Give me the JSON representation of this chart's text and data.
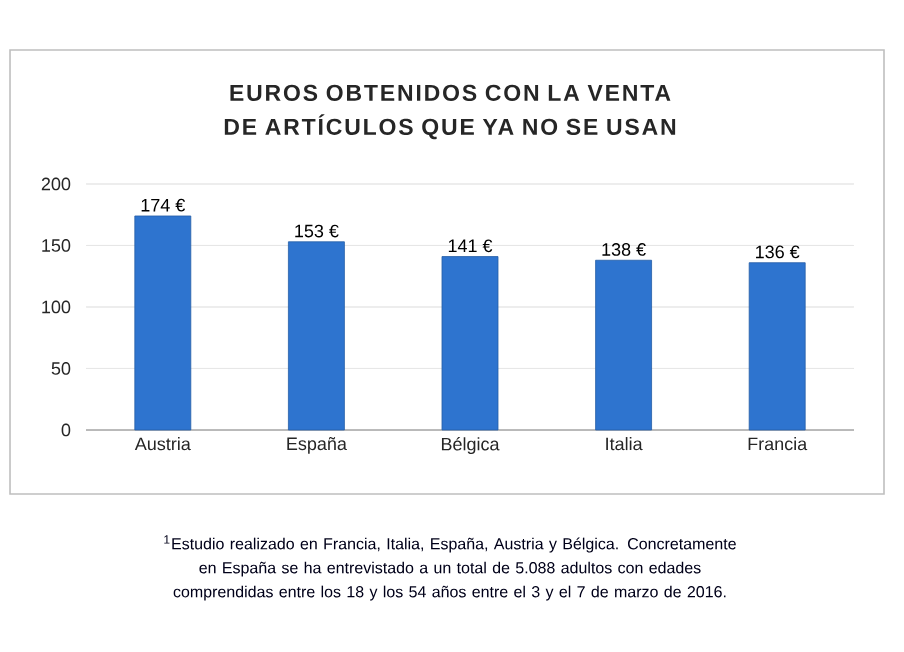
{
  "chart_data": {
    "type": "bar",
    "title": "EUROS OBTENIDOS CON LA VENTA DE ARTÍCULOS QUE YA NO SE USAN",
    "categories": [
      "Austria",
      "España",
      "Bélgica",
      "Italia",
      "Francia"
    ],
    "values": [
      174,
      153,
      141,
      138,
      136
    ],
    "value_labels": [
      "174 €",
      "153 €",
      "141 €",
      "138 €",
      "136 €"
    ],
    "color": "#2e74cf",
    "ylim": [
      0,
      200
    ],
    "yticks": [
      0,
      50,
      100,
      150,
      200
    ],
    "grid": "y",
    "annotations": [
      "$^{1}$Estudio realizado en Francia, Italia, España, Austria y Bélgica. Concretamente en España se ha entrevistado a un total de 5.088 adultos con edades comprendidas entre los 18 y los 54 años entre el 3 y el 7 de marzo de 2016."
    ]
  }
}
